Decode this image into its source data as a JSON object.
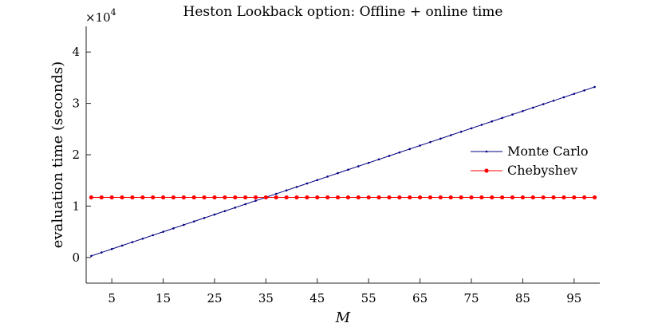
{
  "chart_data": {
    "type": "line",
    "title": "Heston Lookback option: Offline + online time",
    "xlabel": "M",
    "ylabel": "evaluation time (seconds)",
    "y_exponent_label": "×10",
    "y_exponent_power": "4",
    "xlim": [
      0,
      100
    ],
    "ylim": [
      -0.5,
      4.5
    ],
    "y_scale_factor": 10000,
    "xticks": [
      5,
      15,
      25,
      35,
      45,
      55,
      65,
      75,
      85,
      95
    ],
    "xtick_labels": [
      "5",
      "15",
      "25",
      "35",
      "45",
      "55",
      "65",
      "75",
      "85",
      "95"
    ],
    "yticks": [
      0,
      1,
      2,
      3,
      4
    ],
    "ytick_labels": [
      "0",
      "1",
      "2",
      "3",
      "4"
    ],
    "grid": false,
    "legend_position": "right",
    "series": [
      {
        "name": "Monte Carlo",
        "color": "#000080",
        "marker": "dot",
        "x_start": 1,
        "x_end": 99,
        "x_step": 2,
        "y_start": 0.03,
        "y_end": 3.32,
        "linear": true
      },
      {
        "name": "Chebyshev",
        "color": "#ff0000",
        "marker": "circle",
        "x_start": 1,
        "x_end": 99,
        "x_step": 2,
        "y_constant": 1.17
      }
    ]
  }
}
